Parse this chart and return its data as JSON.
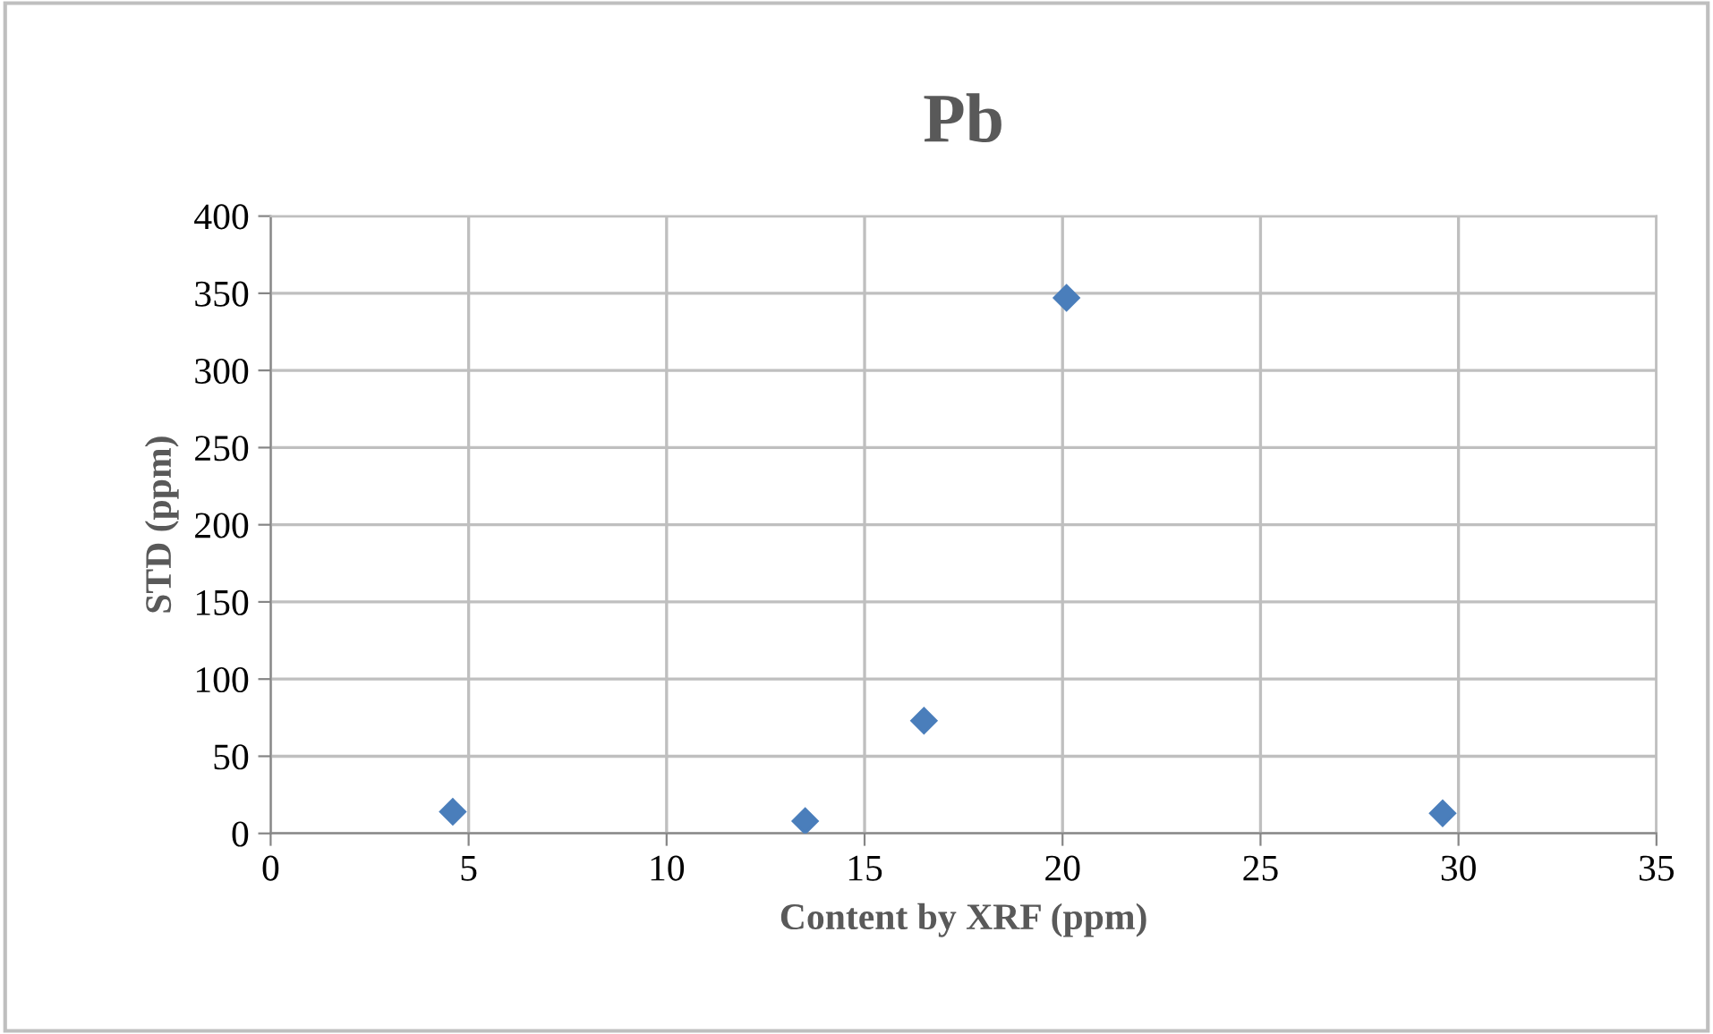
{
  "chart_data": {
    "type": "scatter",
    "title": "Pb",
    "xlabel": "Content by XRF (ppm)",
    "ylabel": "STD (ppm)",
    "x": [
      4.6,
      13.5,
      16.5,
      20.1,
      29.6
    ],
    "series": [
      {
        "color": "#4a7ebb",
        "values": [
          14,
          8,
          73,
          347,
          13
        ]
      }
    ],
    "xlim": [
      0,
      35
    ],
    "xticks": [
      0,
      5,
      10,
      15,
      20,
      25,
      30,
      35
    ],
    "ylim": [
      0,
      400
    ],
    "yticks": [
      0,
      50,
      100,
      150,
      200,
      250,
      300,
      350,
      400
    ],
    "grid": true,
    "marker": "diamond",
    "legend": false
  }
}
